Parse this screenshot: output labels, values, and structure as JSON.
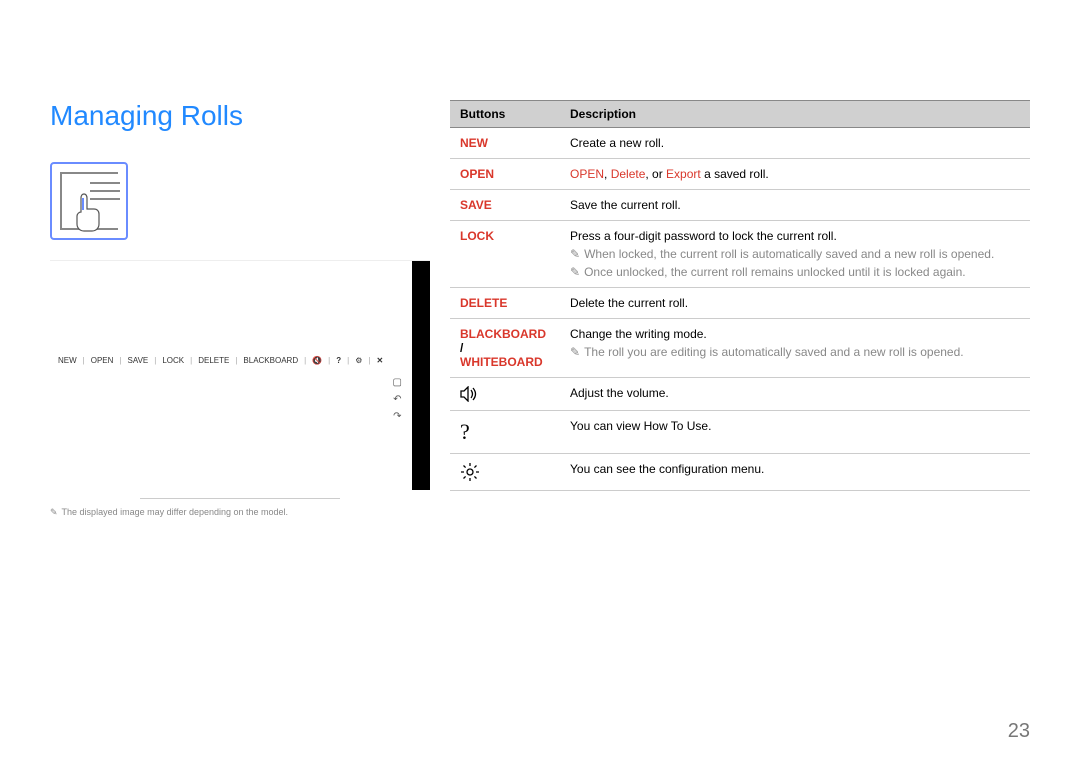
{
  "title": "Managing Rolls",
  "page_number": "23",
  "footnote": "The displayed image may differ depending on the model.",
  "toolbar_items": [
    "NEW",
    "OPEN",
    "SAVE",
    "LOCK",
    "DELETE",
    "BLACKBOARD"
  ],
  "table": {
    "headers": [
      "Buttons",
      "Description"
    ],
    "rows": [
      {
        "button": "NEW",
        "button_red": true,
        "desc_parts": [
          {
            "text": "Create a new roll."
          }
        ]
      },
      {
        "button": "OPEN",
        "button_red": true,
        "desc_parts": [
          {
            "text": "OPEN",
            "red": true
          },
          {
            "text": ", "
          },
          {
            "text": "Delete",
            "red": true
          },
          {
            "text": ", or "
          },
          {
            "text": "Export",
            "red": true
          },
          {
            "text": " a saved roll."
          }
        ]
      },
      {
        "button": "SAVE",
        "button_red": true,
        "desc_parts": [
          {
            "text": "Save the current roll."
          }
        ]
      },
      {
        "button": "LOCK",
        "button_red": true,
        "desc_parts": [
          {
            "text": "Press a four-digit password to lock the current roll."
          }
        ],
        "notes": [
          "When locked, the current roll is automatically saved and a new roll is opened.",
          "Once unlocked, the current roll remains unlocked until it is locked again."
        ]
      },
      {
        "button": "DELETE",
        "button_red": true,
        "desc_parts": [
          {
            "text": "Delete the current roll."
          }
        ]
      },
      {
        "button_html": "BLACKBOARD_WHITEBOARD",
        "button_line1": "BLACKBOARD",
        "button_sep": " / ",
        "button_line2": "WHITEBOARD",
        "button_red": true,
        "desc_parts": [
          {
            "text": "Change the writing mode."
          }
        ],
        "notes": [
          "The roll you are editing is automatically saved and a new roll is opened."
        ]
      },
      {
        "icon": "volume",
        "desc_parts": [
          {
            "text": "Adjust the volume."
          }
        ]
      },
      {
        "icon": "question",
        "desc_parts": [
          {
            "text": "You can view How To Use."
          }
        ]
      },
      {
        "icon": "gear",
        "desc_parts": [
          {
            "text": "You can see the configuration menu."
          }
        ]
      }
    ]
  }
}
